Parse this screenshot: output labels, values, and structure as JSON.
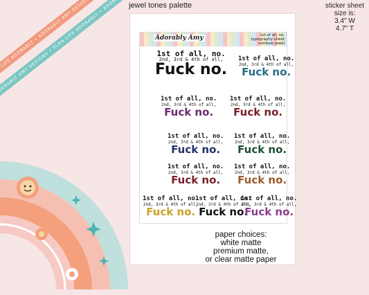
{
  "palette_label": "jewel tones palette",
  "sheet_size": {
    "line1": "sticker sheet",
    "line2": "size is:",
    "width": "3.4\" W",
    "height": "4.7\" T"
  },
  "ribbons": {
    "top": "PLAN LIFE ADORABLY • ADORABLY AMY DESIGNS • PLAN LIFE ADORABLY",
    "bottom": "ADORABLY AMY DESIGNS • PLAN LIFE ADORABLY • ADORABLY AMY"
  },
  "header": {
    "brand": "Adorably Amy",
    "info_1": "1st of all, no.",
    "info_2": "typography sheet",
    "info_3": "rainbow jewel"
  },
  "paper": {
    "title": "paper choices:",
    "opt1": "white matte",
    "opt2": "premium matte,",
    "opt3": "or clear matte paper"
  },
  "sticker_text": {
    "l1": "1st of all, no.",
    "l2": "2nd, 3rd & 4th of all,",
    "l3": "Fuck no."
  },
  "colors": {
    "bg": "#f7e6e6",
    "accent_teal": "#4fb3b5",
    "accent_coral": "#f08a6f"
  }
}
